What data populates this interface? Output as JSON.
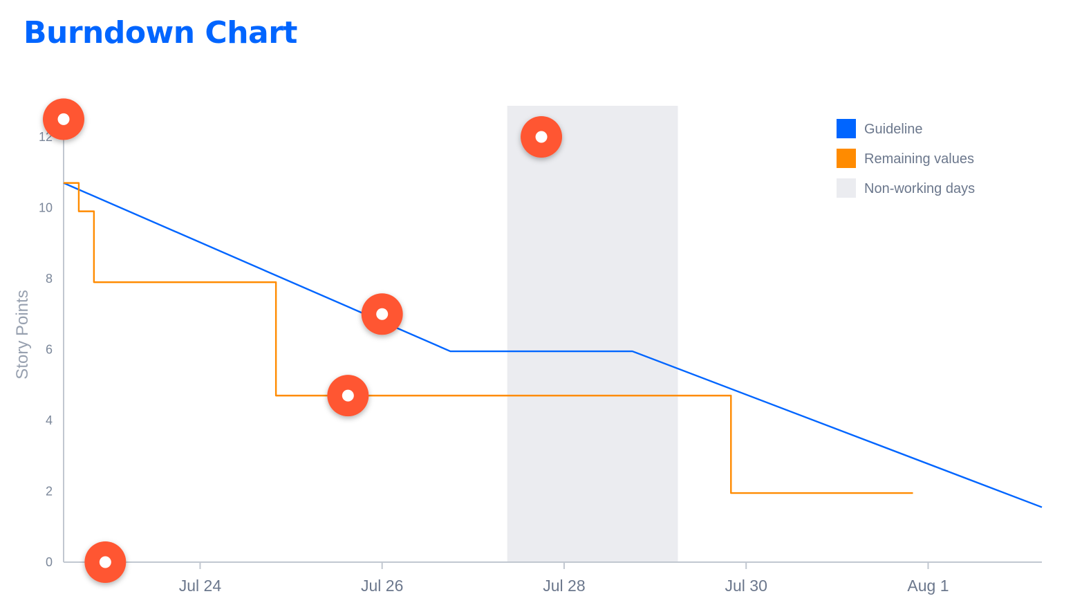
{
  "page": {
    "title": "Burndown Chart"
  },
  "chart_data": {
    "type": "line",
    "ylabel": "Story Points",
    "ylim": [
      0,
      12
    ],
    "yticks": [
      "0",
      "2",
      "4",
      "6",
      "8",
      "10",
      "12"
    ],
    "xlim": [
      "2023-07-22T12:00",
      "2023-08-02T06:00"
    ],
    "xticks": [
      {
        "date": "2023-07-24",
        "label": "Jul 24"
      },
      {
        "date": "2023-07-26",
        "label": "Jul 26"
      },
      {
        "date": "2023-07-28",
        "label": "Jul 28"
      },
      {
        "date": "2023-07-30",
        "label": "Jul 30"
      },
      {
        "date": "2023-08-01",
        "label": "Aug 1"
      }
    ],
    "non_working_days": {
      "start": "2023-07-27T09:00",
      "end": "2023-07-29T06:00"
    },
    "series": [
      {
        "name": "Guideline",
        "color": "#0065ff",
        "style": "line",
        "points": [
          {
            "x": "2023-07-22T12:00",
            "y": 10.7
          },
          {
            "x": "2023-07-26T18:00",
            "y": 5.95
          },
          {
            "x": "2023-07-28T18:00",
            "y": 5.95
          },
          {
            "x": "2023-08-02T06:00",
            "y": 1.55
          }
        ]
      },
      {
        "name": "Remaining values",
        "color": "#ff8b00",
        "style": "step",
        "points": [
          {
            "x": "2023-07-22T12:00",
            "y": 10.7
          },
          {
            "x": "2023-07-22T16:00",
            "y": 9.9
          },
          {
            "x": "2023-07-22T20:00",
            "y": 7.9
          },
          {
            "x": "2023-07-24T20:00",
            "y": 4.7
          },
          {
            "x": "2023-07-29T20:00",
            "y": 1.95
          },
          {
            "x": "2023-07-31T20:00",
            "y": 1.95
          }
        ]
      }
    ],
    "legend": {
      "position": "top-right",
      "items": [
        {
          "label": "Guideline",
          "color": "#0065ff"
        },
        {
          "label": "Remaining values",
          "color": "#ff8b00"
        },
        {
          "label": "Non-working days",
          "color": "#ebecf0"
        }
      ]
    },
    "markers": [
      {
        "x": "2023-07-22T12:00",
        "y": 12.5
      },
      {
        "x": "2023-07-22T23:00",
        "y": 0
      },
      {
        "x": "2023-07-25T15:00",
        "y": 4.7
      },
      {
        "x": "2023-07-26T00:00",
        "y": 7.0
      },
      {
        "x": "2023-07-27T18:00",
        "y": 12.0
      }
    ],
    "marker_color": "#ff5630"
  }
}
